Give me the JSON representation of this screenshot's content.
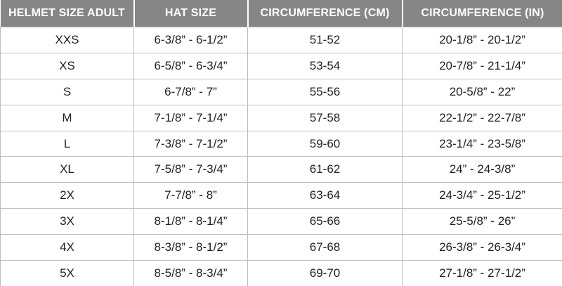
{
  "table": {
    "header": [
      "HELMET SIZE ADULT",
      "HAT SIZE",
      "CIRCUMFERENCE (CM)",
      "CIRCUMFERENCE (IN)"
    ],
    "rows": [
      [
        "XXS",
        "6-3/8” - 6-1/2”",
        "51-52",
        "20-1/8” - 20-1/2”"
      ],
      [
        "XS",
        "6-5/8” - 6-3/4”",
        "53-54",
        "20-7/8” - 21-1/4”"
      ],
      [
        "S",
        "6-7/8” - 7”",
        "55-56",
        "20-5/8” - 22”"
      ],
      [
        "M",
        "7-1/8” - 7-1/4”",
        "57-58",
        "22-1/2” - 22-7/8”"
      ],
      [
        "L",
        "7-3/8” - 7-1/2”",
        "59-60",
        "23-1/4” - 23-5/8”"
      ],
      [
        "XL",
        "7-5/8” - 7-3/4”",
        "61-62",
        "24” - 24-3/8”"
      ],
      [
        "2X",
        "7-7/8” - 8”",
        "63-64",
        "24-3/4” - 25-1/2”"
      ],
      [
        "3X",
        "8-1/8” - 8-1/4”",
        "65-66",
        "25-5/8” - 26”"
      ],
      [
        "4X",
        "8-3/8” - 8-1/2”",
        "67-68",
        "26-3/8” - 26-3/4”"
      ],
      [
        "5X",
        "8-5/8” - 8-3/4”",
        "69-70",
        "27-1/8” - 27-1/2”"
      ]
    ]
  }
}
